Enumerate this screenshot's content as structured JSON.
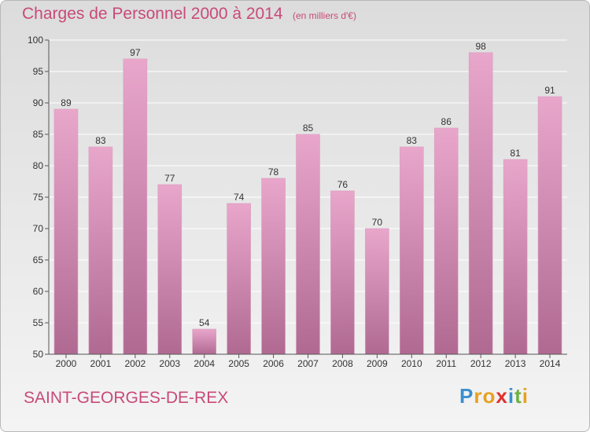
{
  "header": {
    "title": "Charges de Personnel 2000 à 2014",
    "subtitle": "(en milliers d'€)"
  },
  "footer": {
    "commune": "SAINT-GEORGES-DE-REX",
    "brand_letters": [
      "P",
      "r",
      "o",
      "x",
      "i",
      "t",
      "i"
    ],
    "brand_colors": [
      "#3a8fd0",
      "#e8a020",
      "#e8a020",
      "#e03030",
      "#3a8fd0",
      "#70b040",
      "#e8a020"
    ]
  },
  "colors": {
    "bar_top": "#e9a6cb",
    "bar_bottom": "#b06a92",
    "title": "#c84a78"
  },
  "chart_data": {
    "type": "bar",
    "categories": [
      "2000",
      "2001",
      "2002",
      "2003",
      "2004",
      "2005",
      "2006",
      "2007",
      "2008",
      "2009",
      "2010",
      "2011",
      "2012",
      "2013",
      "2014"
    ],
    "values": [
      89,
      83,
      97,
      77,
      54,
      74,
      78,
      85,
      76,
      70,
      83,
      86,
      98,
      81,
      91
    ],
    "y_ticks": [
      50,
      55,
      60,
      65,
      70,
      75,
      80,
      85,
      90,
      95,
      100
    ],
    "ylim": [
      50,
      100
    ],
    "grid": true
  }
}
